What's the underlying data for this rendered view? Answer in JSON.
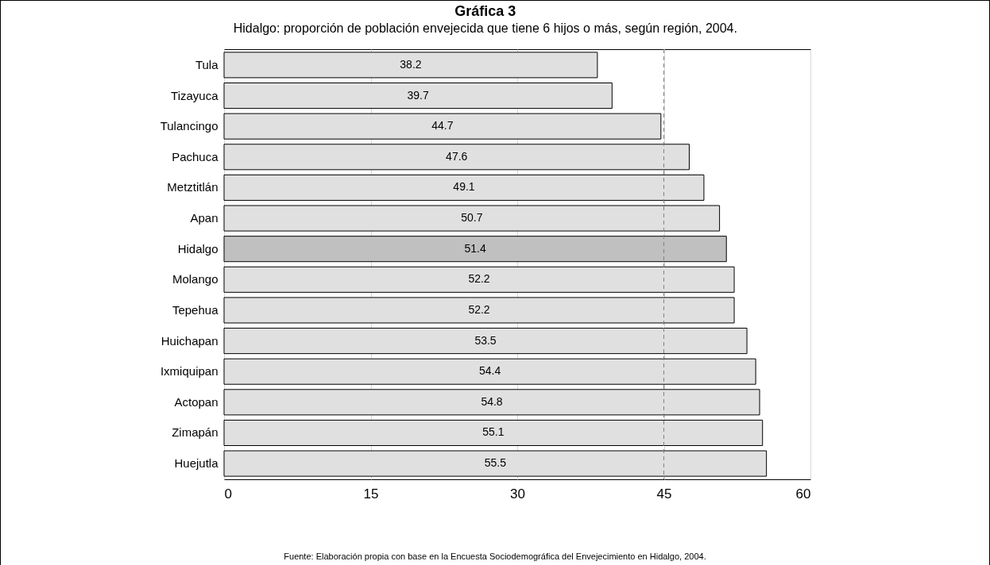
{
  "chart_data": {
    "type": "bar",
    "orientation": "horizontal",
    "title": "Gráfica 3",
    "subtitle": "Hidalgo:  proporción de población envejecida que tiene 6 hijos o más, según región, 2004.",
    "categories": [
      "Tula",
      "Tizayuca",
      "Tulancingo",
      "Pachuca",
      "Metztitlán",
      "Apan",
      "Hidalgo",
      "Molango",
      "Tepehua",
      "Huichapan",
      "Ixmiquipan",
      "Actopan",
      "Zimapán",
      "Huejutla"
    ],
    "values": [
      38.2,
      39.7,
      44.7,
      47.6,
      49.1,
      50.7,
      51.4,
      52.2,
      52.2,
      53.5,
      54.4,
      54.8,
      55.1,
      55.5
    ],
    "colors": [
      "#e0e0e0",
      "#e0e0e0",
      "#e0e0e0",
      "#e0e0e0",
      "#e0e0e0",
      "#e0e0e0",
      "#c0c0c0",
      "#e0e0e0",
      "#e0e0e0",
      "#e0e0e0",
      "#e0e0e0",
      "#e0e0e0",
      "#e0e0e0",
      "#e0e0e0"
    ],
    "xlim": [
      0,
      60
    ],
    "xticks": [
      0,
      15,
      30,
      45,
      60
    ],
    "grid": "x",
    "data_labels": true,
    "ref_lines": [
      {
        "axis": "x",
        "value": 45,
        "color": "#808080",
        "line_style": "dashed"
      }
    ],
    "annotations": [
      "Fuente: Elaboración propia con base en la Encuesta Sociodemográfica del Envejecimiento en Hidalgo, 2004."
    ]
  }
}
